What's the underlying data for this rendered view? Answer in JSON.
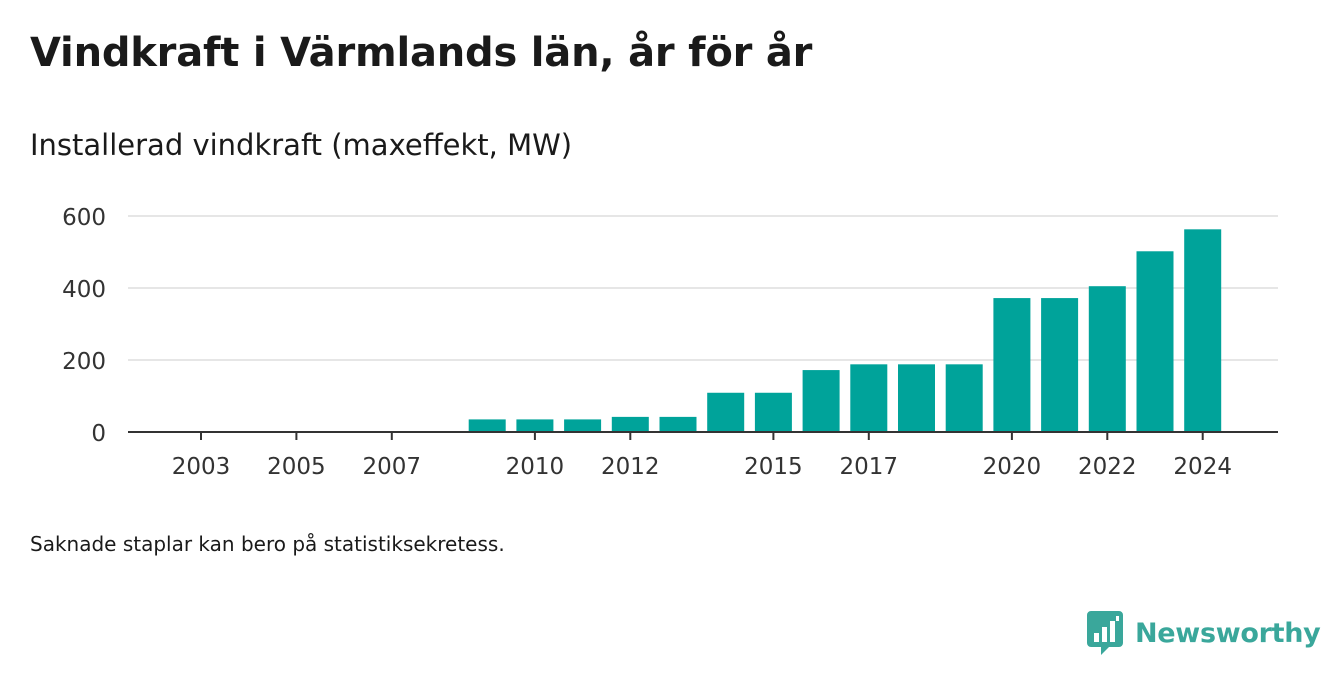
{
  "title": "Vindkraft i Värmlands län, år för år",
  "subtitle": "Installerad vindkraft (maxeffekt, MW)",
  "footnote": "Saknade staplar kan bero på statistiksekretess.",
  "brand": {
    "name": "Newsworthy",
    "icon": "bar-chart-speech-bubble-icon",
    "color": "#3aa79b"
  },
  "colors": {
    "bar": "#00a39a",
    "grid": "#dddddd",
    "axis": "#333333",
    "text": "#333333"
  },
  "chart_data": {
    "type": "bar",
    "x": [
      2003,
      2004,
      2005,
      2006,
      2007,
      2008,
      2009,
      2010,
      2011,
      2012,
      2013,
      2014,
      2015,
      2016,
      2017,
      2018,
      2019,
      2020,
      2021,
      2022,
      2023,
      2024
    ],
    "values": [
      0,
      0,
      0,
      0,
      0,
      0,
      35,
      35,
      35,
      42,
      42,
      109,
      109,
      172,
      188,
      188,
      188,
      372,
      372,
      405,
      502,
      563
    ],
    "xticks": [
      "2003",
      "2005",
      "2007",
      "2010",
      "2012",
      "2015",
      "2017",
      "2020",
      "2022",
      "2024"
    ],
    "yticks": [
      "0",
      "200",
      "400",
      "600"
    ],
    "ylim": [
      0,
      600
    ],
    "grid": true
  }
}
